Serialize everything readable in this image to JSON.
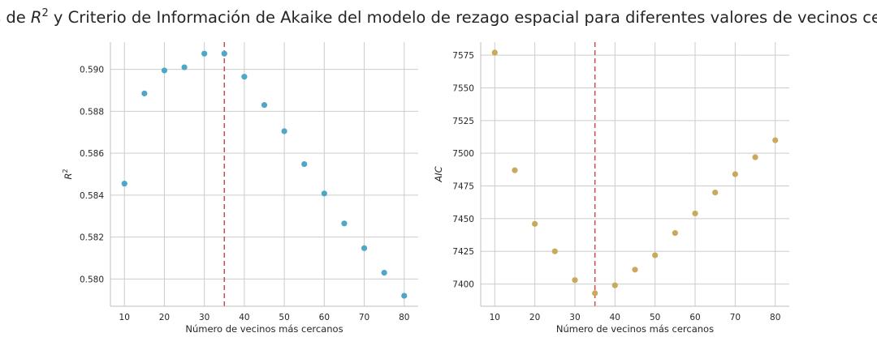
{
  "chart_data": {
    "title_prefix": "Valores de ",
    "title_r": "R",
    "title_sup": "2",
    "title_suffix": " y Criterio de Información de Akaike del modelo de rezago espacial para diferentes valores de vecinos cercanos",
    "charts": [
      {
        "type": "scatter",
        "xlabel": "Número de vecinos más cercanos",
        "ylabel_base": "R",
        "ylabel_sup": "2",
        "color": "#4fa7c7",
        "x": [
          10,
          15,
          20,
          25,
          30,
          35,
          40,
          45,
          50,
          55,
          60,
          65,
          70,
          75,
          80
        ],
        "y": [
          0.58455,
          0.58885,
          0.58995,
          0.5901,
          0.59075,
          0.59075,
          0.58965,
          0.5883,
          0.58705,
          0.58548,
          0.58408,
          0.58265,
          0.58147,
          0.5803,
          0.5792
        ],
        "xlim": [
          6.5,
          83.5
        ],
        "ylim": [
          0.5787,
          0.5913
        ],
        "xticks": [
          10,
          20,
          30,
          40,
          50,
          60,
          70,
          80
        ],
        "yticks": [
          0.58,
          0.582,
          0.584,
          0.586,
          0.588,
          0.59
        ],
        "ytick_labels": [
          "0.580",
          "0.582",
          "0.584",
          "0.586",
          "0.588",
          "0.590"
        ],
        "vline_x": 35,
        "vline_color": "#c44e52",
        "grid": true
      },
      {
        "type": "scatter",
        "xlabel": "Número de vecinos más cercanos",
        "ylabel": "AIC",
        "color": "#c9aa5c",
        "x": [
          10,
          15,
          20,
          25,
          30,
          35,
          40,
          45,
          50,
          55,
          60,
          65,
          70,
          75,
          80
        ],
        "y": [
          7577,
          7487,
          7446,
          7425,
          7403,
          7393,
          7399,
          7411,
          7422,
          7439,
          7454,
          7470,
          7484,
          7497,
          7510
        ],
        "xlim": [
          6.5,
          83.5
        ],
        "ylim": [
          7383,
          7585
        ],
        "xticks": [
          10,
          20,
          30,
          40,
          50,
          60,
          70,
          80
        ],
        "yticks": [
          7400,
          7425,
          7450,
          7475,
          7500,
          7525,
          7550,
          7575
        ],
        "ytick_labels": [
          "7400",
          "7425",
          "7450",
          "7475",
          "7500",
          "7525",
          "7550",
          "7575"
        ],
        "vline_x": 35,
        "vline_color": "#c44e52",
        "grid": true
      }
    ]
  }
}
